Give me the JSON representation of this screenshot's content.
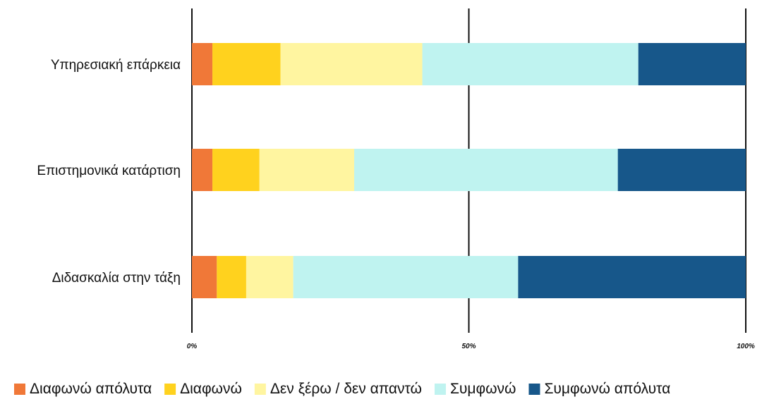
{
  "chart_data": {
    "type": "bar",
    "orientation": "horizontal",
    "stacked": "percent",
    "categories": [
      "Υπηρεσιακή επάρκεια",
      "Επιστημονικά κατάρτιση",
      "Διδασκαλία στην τάξη"
    ],
    "series": [
      {
        "name": "Διαφωνώ απόλυτα",
        "color": "#f07838",
        "values": [
          3.7,
          3.7,
          4.5
        ]
      },
      {
        "name": "Διαφωνώ",
        "color": "#ffd21e",
        "values": [
          12.3,
          8.5,
          5.3
        ]
      },
      {
        "name": "Δεν ξέρω / δεν απαντώ",
        "color": "#fff5a0",
        "values": [
          25.6,
          17.1,
          8.5
        ]
      },
      {
        "name": "Συμφωνώ",
        "color": "#bff3f0",
        "values": [
          39.0,
          47.6,
          40.6
        ]
      },
      {
        "name": "Συμφωνώ απόλυτα",
        "color": "#17578a",
        "values": [
          19.4,
          23.1,
          41.1
        ]
      }
    ],
    "xlim": [
      0,
      100
    ],
    "x_ticks": [
      "0%",
      "50%",
      "100%"
    ],
    "grid": true,
    "legend_position": "bottom"
  }
}
